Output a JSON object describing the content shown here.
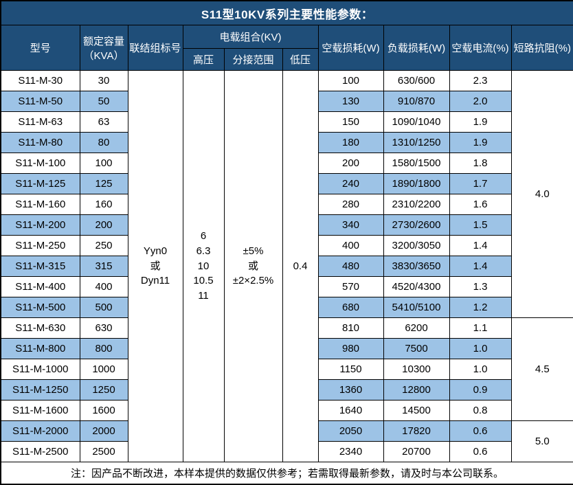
{
  "title": "S11型10KV系列主要性能参数：",
  "colors": {
    "header_bg": "#1f4e79",
    "header_text": "#ffffff",
    "row_alt_bg": "#9dc3e6",
    "row_bg": "#ffffff",
    "border": "#000000"
  },
  "table": {
    "headers": {
      "model": "型号",
      "capacity_line1": "额定容量",
      "capacity_line2": "（KVA）",
      "vector_group": "联结组标号",
      "load_combination": "电载组合(KV)",
      "hv": "高压",
      "tap_range": "分接范围",
      "lv": "低压",
      "no_load_loss": "空载损耗(W)",
      "load_loss": "负载损耗(W)",
      "no_load_current": "空载电流(%)",
      "impedance": "短路抗阻(%)"
    },
    "merged": {
      "vector_group_lines": [
        "Yyn0",
        "或",
        "Dyn11"
      ],
      "hv_lines": [
        "6",
        "6.3",
        "10",
        "10.5",
        "11"
      ],
      "tap_range_lines": [
        "±5%",
        "或",
        "±2×2.5%"
      ],
      "lv": "0.4",
      "impedance_groups": [
        {
          "value": "4.0",
          "start": 0,
          "span": 12
        },
        {
          "value": "4.5",
          "start": 12,
          "span": 5
        },
        {
          "value": "5.0",
          "start": 17,
          "span": 2
        }
      ]
    },
    "rows": [
      {
        "model": "S11-M-30",
        "kva": "30",
        "no_load_loss": "100",
        "load_loss": "630/600",
        "no_load_current": "2.3"
      },
      {
        "model": "S11-M-50",
        "kva": "50",
        "no_load_loss": "130",
        "load_loss": "910/870",
        "no_load_current": "2.0"
      },
      {
        "model": "S11-M-63",
        "kva": "63",
        "no_load_loss": "150",
        "load_loss": "1090/1040",
        "no_load_current": "1.9"
      },
      {
        "model": "S11-M-80",
        "kva": "80",
        "no_load_loss": "180",
        "load_loss": "1310/1250",
        "no_load_current": "1.9"
      },
      {
        "model": "S11-M-100",
        "kva": "100",
        "no_load_loss": "200",
        "load_loss": "1580/1500",
        "no_load_current": "1.8"
      },
      {
        "model": "S11-M-125",
        "kva": "125",
        "no_load_loss": "240",
        "load_loss": "1890/1800",
        "no_load_current": "1.7"
      },
      {
        "model": "S11-M-160",
        "kva": "160",
        "no_load_loss": "280",
        "load_loss": "2310/2200",
        "no_load_current": "1.6"
      },
      {
        "model": "S11-M-200",
        "kva": "200",
        "no_load_loss": "340",
        "load_loss": "2730/2600",
        "no_load_current": "1.5"
      },
      {
        "model": "S11-M-250",
        "kva": "250",
        "no_load_loss": "400",
        "load_loss": "3200/3050",
        "no_load_current": "1.4"
      },
      {
        "model": "S11-M-315",
        "kva": "315",
        "no_load_loss": "480",
        "load_loss": "3830/3650",
        "no_load_current": "1.4"
      },
      {
        "model": "S11-M-400",
        "kva": "400",
        "no_load_loss": "570",
        "load_loss": "4520/4300",
        "no_load_current": "1.3"
      },
      {
        "model": "S11-M-500",
        "kva": "500",
        "no_load_loss": "680",
        "load_loss": "5410/5100",
        "no_load_current": "1.2"
      },
      {
        "model": "S11-M-630",
        "kva": "630",
        "no_load_loss": "810",
        "load_loss": "6200",
        "no_load_current": "1.1"
      },
      {
        "model": "S11-M-800",
        "kva": "800",
        "no_load_loss": "980",
        "load_loss": "7500",
        "no_load_current": "1.0"
      },
      {
        "model": "S11-M-1000",
        "kva": "1000",
        "no_load_loss": "1150",
        "load_loss": "10300",
        "no_load_current": "1.0"
      },
      {
        "model": "S11-M-1250",
        "kva": "1250",
        "no_load_loss": "1360",
        "load_loss": "12800",
        "no_load_current": "0.9"
      },
      {
        "model": "S11-M-1600",
        "kva": "1600",
        "no_load_loss": "1640",
        "load_loss": "14500",
        "no_load_current": "0.8"
      },
      {
        "model": "S11-M-2000",
        "kva": "2000",
        "no_load_loss": "2050",
        "load_loss": "17820",
        "no_load_current": "0.6"
      },
      {
        "model": "S11-M-2500",
        "kva": "2500",
        "no_load_loss": "2340",
        "load_loss": "20700",
        "no_load_current": "0.6"
      }
    ]
  },
  "footer_note": "注：因产品不断改进，本样本提供的数据仅供参考；若需取得最新参数，请及时与本公司联系。"
}
